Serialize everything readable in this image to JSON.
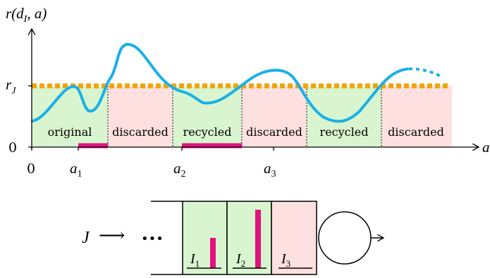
{
  "top_plot": {
    "y_axis_label_main": "r(d",
    "y_axis_label_sub": "I",
    "y_axis_label_tail": ", a)",
    "threshold_label_main": "r",
    "threshold_label_sub": "J",
    "zero_label": "0",
    "x_axis_label": "a",
    "x_ticks": [
      {
        "main": "0",
        "sub": ""
      },
      {
        "main": "a",
        "sub": "1"
      },
      {
        "main": "a",
        "sub": "2"
      },
      {
        "main": "a",
        "sub": "3"
      }
    ],
    "region_labels": [
      "original",
      "discarded",
      "recycled",
      "discarded",
      "recycled",
      "discarded"
    ],
    "colors": {
      "curve": "#1ab0e8",
      "threshold": "#f0a40a",
      "green_region": "#d8f5cf",
      "red_region": "#fde0df",
      "magenta": "#e0137f"
    }
  },
  "bottom_diagram": {
    "input_label": "J",
    "arrow_glyph": "⟶",
    "ellipsis": "•••",
    "slots": [
      {
        "main": "I",
        "sub": "1"
      },
      {
        "main": "I",
        "sub": "2"
      },
      {
        "main": "I",
        "sub": "3"
      }
    ]
  }
}
